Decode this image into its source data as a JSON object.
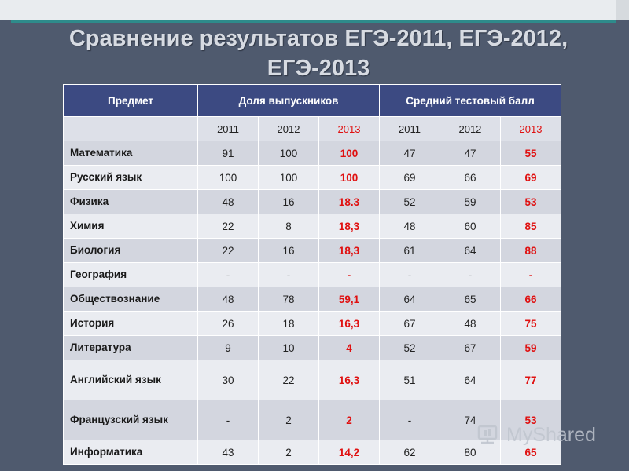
{
  "title_line1": "Сравнение результатов ЕГЭ-2011, ЕГЭ-2012,",
  "title_line2": "ЕГЭ-2013",
  "table": {
    "headers": {
      "subject": "Предмет",
      "share": "Доля выпускников",
      "score": "Средний тестовый балл"
    },
    "years": [
      "2011",
      "2012",
      "2013",
      "2011",
      "2012",
      "2013"
    ],
    "rows": [
      {
        "subject": "Математика",
        "values": [
          "91",
          "100",
          "100",
          "47",
          "47",
          "55"
        ]
      },
      {
        "subject": "Русский язык",
        "values": [
          "100",
          "100",
          "100",
          "69",
          "66",
          "69"
        ]
      },
      {
        "subject": "Физика",
        "values": [
          "48",
          "16",
          "18.3",
          "52",
          "59",
          "53"
        ]
      },
      {
        "subject": "Химия",
        "values": [
          "22",
          "8",
          "18,3",
          "48",
          "60",
          "85"
        ]
      },
      {
        "subject": "Биология",
        "values": [
          "22",
          "16",
          "18,3",
          "61",
          "64",
          "88"
        ]
      },
      {
        "subject": "География",
        "values": [
          "-",
          "-",
          "-",
          "-",
          "-",
          "-"
        ]
      },
      {
        "subject": "Обществознание",
        "values": [
          "48",
          "78",
          "59,1",
          "64",
          "65",
          "66"
        ]
      },
      {
        "subject": "История",
        "values": [
          "26",
          "18",
          "16,3",
          "67",
          "48",
          "75"
        ]
      },
      {
        "subject": "Литература",
        "values": [
          "9",
          "10",
          "4",
          "52",
          "67",
          "59"
        ]
      },
      {
        "subject": "Английский язык",
        "values": [
          "30",
          "22",
          "16,3",
          "51",
          "64",
          "77"
        ]
      },
      {
        "subject": "Французский язык",
        "values": [
          "-",
          "2",
          "2",
          "-",
          "74",
          "53"
        ]
      },
      {
        "subject": "Информатика",
        "values": [
          "43",
          "2",
          "14,2",
          "62",
          "80",
          "65"
        ]
      }
    ]
  },
  "watermark": {
    "text": "MyShared",
    "icon": "myshared-logo-icon"
  },
  "colors": {
    "header_bg": "#3c4a82",
    "highlight": "#e01010",
    "background": "#4f5a6e",
    "accent_line": "#2e8b8b"
  }
}
